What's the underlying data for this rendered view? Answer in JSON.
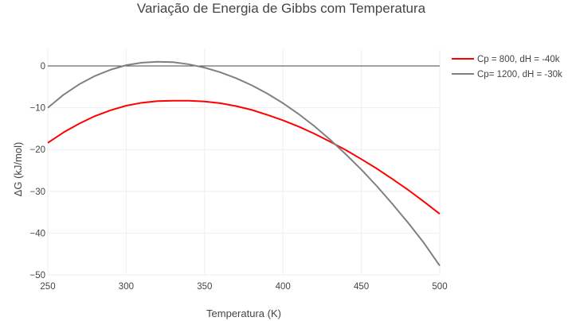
{
  "chart_data": {
    "type": "line",
    "title": "Variação de Energia de Gibbs com Temperatura",
    "xlabel": "Temperatura (K)",
    "ylabel": "ΔG (kJ/mol)",
    "xlim": [
      250,
      500
    ],
    "ylim": [
      -50,
      4
    ],
    "x_ticks": [
      250,
      300,
      350,
      400,
      450,
      500
    ],
    "y_ticks": [
      0,
      -10,
      -20,
      -30,
      -40,
      -50
    ],
    "y_tick_labels": [
      "0",
      "−10",
      "−20",
      "−30",
      "−40",
      "−50"
    ],
    "grid": true,
    "zero_line": true,
    "legend_position": "top-right",
    "series": [
      {
        "name": "Cp = 800, dH = -40k",
        "color": "#ff0000",
        "x": [
          250,
          260,
          270,
          280,
          290,
          300,
          310,
          320,
          330,
          340,
          350,
          360,
          370,
          380,
          390,
          400,
          410,
          420,
          430,
          440,
          450,
          460,
          470,
          480,
          490,
          500
        ],
        "y": [
          -18.4,
          -15.9,
          -13.8,
          -12.0,
          -10.6,
          -9.5,
          -8.8,
          -8.4,
          -8.3,
          -8.3,
          -8.5,
          -8.9,
          -9.6,
          -10.5,
          -11.7,
          -13.0,
          -14.5,
          -16.2,
          -18.1,
          -20.1,
          -22.3,
          -24.6,
          -27.1,
          -29.7,
          -32.5,
          -35.4
        ]
      },
      {
        "name": "Cp= 1200, dH = -30k",
        "color": "#808080",
        "x": [
          250,
          260,
          270,
          280,
          290,
          300,
          310,
          320,
          330,
          340,
          350,
          360,
          370,
          380,
          390,
          400,
          410,
          420,
          430,
          440,
          450,
          460,
          470,
          480,
          490,
          500
        ],
        "y": [
          -10.0,
          -6.9,
          -4.4,
          -2.4,
          -0.9,
          0.2,
          0.8,
          1.0,
          0.9,
          0.4,
          -0.4,
          -1.5,
          -2.9,
          -4.6,
          -6.6,
          -8.9,
          -11.5,
          -14.4,
          -17.6,
          -21.1,
          -24.8,
          -28.8,
          -33.1,
          -37.6,
          -42.4,
          -47.8
        ]
      }
    ]
  }
}
